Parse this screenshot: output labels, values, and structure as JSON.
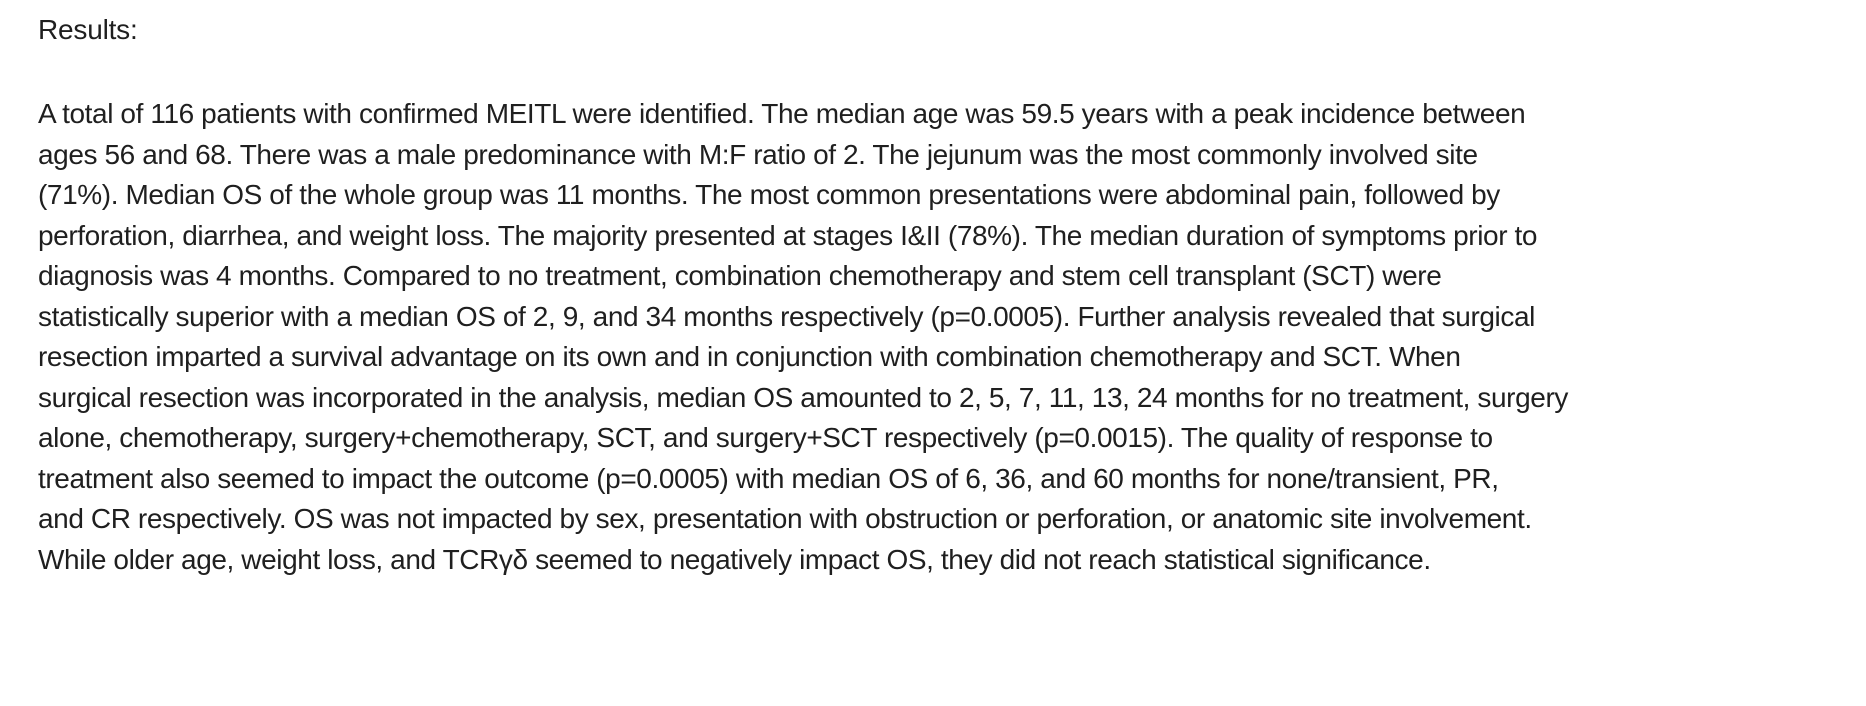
{
  "colors": {
    "text": "#1f1f1f",
    "background": "#ffffff"
  },
  "results_section": {
    "heading": "Results:",
    "paragraph": "A total of 116 patients with confirmed MEITL were identified. The median age was 59.5 years with a peak incidence between\nages 56 and 68. There was a male predominance with M:F ratio of 2. The jejunum was the most commonly involved site\n(71%). Median OS of the whole group was 11 months. The most common presentations were abdominal pain, followed by\nperforation, diarrhea, and weight loss. The majority presented at stages I&II (78%). The median duration of symptoms prior to\ndiagnosis was 4 months. Compared to no treatment, combination chemotherapy and stem cell transplant (SCT) were\nstatistically superior with a median OS of 2, 9, and 34 months respectively (p=0.0005). Further analysis revealed that surgical\nresection imparted a survival advantage on its own and in conjunction with combination chemotherapy and SCT. When\nsurgical resection was incorporated in the analysis, median OS amounted to 2, 5, 7, 11, 13, 24 months for no treatment, surgery\nalone, chemotherapy, surgery+chemotherapy, SCT, and surgery+SCT respectively (p=0.0015). The quality of response to\ntreatment also seemed to impact the outcome (p=0.0005) with median OS of 6, 36, and 60 months for none/transient, PR,\nand CR respectively. OS was not impacted by sex, presentation with obstruction or perforation, or anatomic site involvement.\nWhile older age, weight loss, and TCRγδ seemed to negatively impact OS, they did not reach statistical significance."
  }
}
